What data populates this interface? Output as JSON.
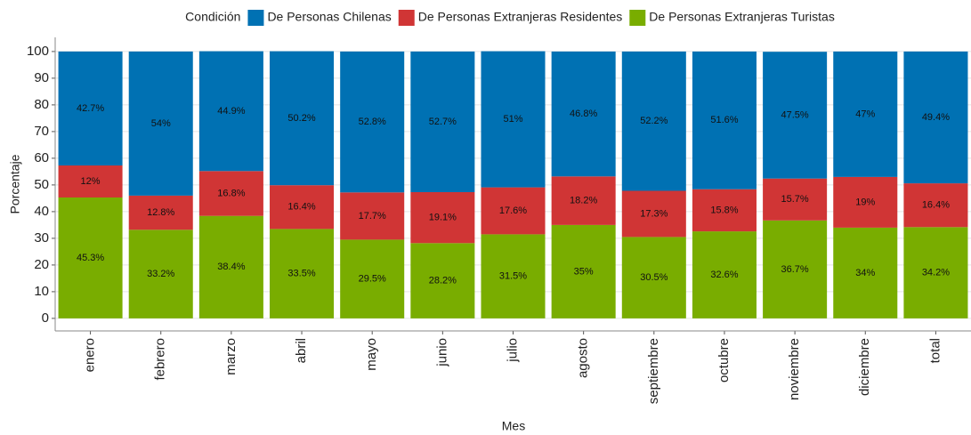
{
  "chart_data": {
    "type": "stacked_bar",
    "legend_title": "Condición",
    "legend_position": "top",
    "xlabel": "Mes",
    "ylabel": "Porcentaje",
    "categories": [
      "enero",
      "febrero",
      "marzo",
      "abril",
      "mayo",
      "junio",
      "julio",
      "agosto",
      "septiembre",
      "octubre",
      "noviembre",
      "diciembre",
      "total"
    ],
    "series": [
      {
        "name": "De Personas Chilenas",
        "color": "#0071b3",
        "values": [
          42.7,
          54,
          44.9,
          50.2,
          52.8,
          52.7,
          51,
          46.8,
          52.2,
          51.6,
          47.5,
          47,
          49.4
        ],
        "value_labels": [
          "42.7%",
          "54%",
          "44.9%",
          "50.2%",
          "52.8%",
          "52.7%",
          "51%",
          "46.8%",
          "52.2%",
          "51.6%",
          "47.5%",
          "47%",
          "49.4%"
        ]
      },
      {
        "name": "De Personas Extranjeras Residentes",
        "color": "#d03535",
        "values": [
          12,
          12.8,
          16.8,
          16.4,
          17.7,
          19.1,
          17.6,
          18.2,
          17.3,
          15.8,
          15.7,
          19,
          16.4
        ],
        "value_labels": [
          "12%",
          "12.8%",
          "16.8%",
          "16.4%",
          "17.7%",
          "19.1%",
          "17.6%",
          "18.2%",
          "17.3%",
          "15.8%",
          "15.7%",
          "19%",
          "16.4%"
        ]
      },
      {
        "name": "De Personas Extranjeras Turistas",
        "color": "#79ad00",
        "values": [
          45.3,
          33.2,
          38.4,
          33.5,
          29.5,
          28.2,
          31.5,
          35,
          30.5,
          32.6,
          36.7,
          34,
          34.2
        ],
        "value_labels": [
          "45.3%",
          "33.2%",
          "38.4%",
          "33.5%",
          "29.5%",
          "28.2%",
          "31.5%",
          "35%",
          "30.5%",
          "32.6%",
          "36.7%",
          "34%",
          "34.2%"
        ]
      }
    ],
    "stack_order": "bottom-to-top reversed",
    "ylim": [
      -4.7,
      105.3
    ],
    "yticks": [
      0,
      10,
      20,
      30,
      40,
      50,
      60,
      70,
      80,
      90,
      100
    ],
    "grid": true
  }
}
